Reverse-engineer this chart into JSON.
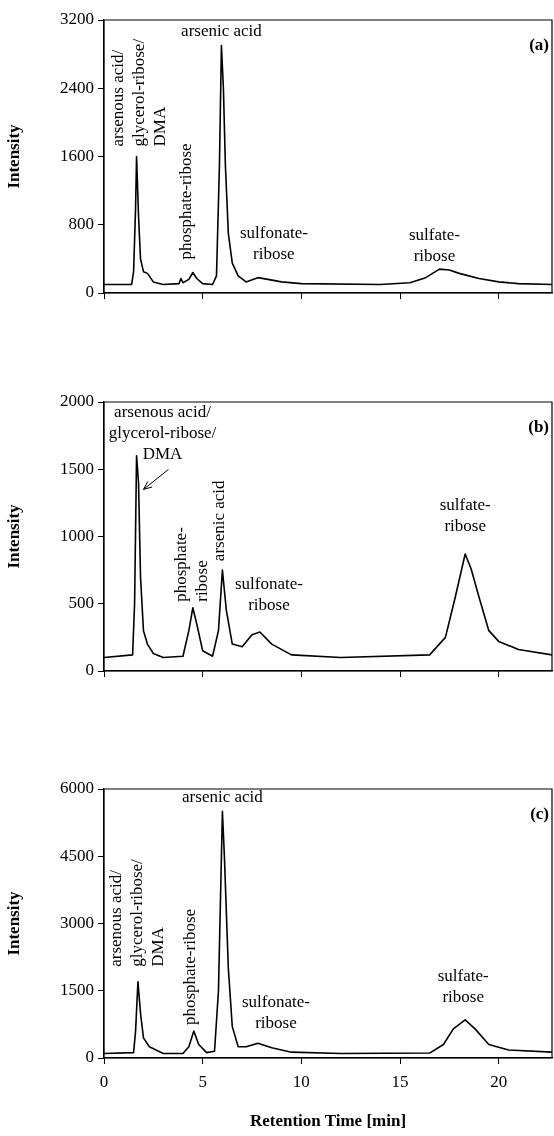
{
  "chart_data": [
    {
      "type": "line",
      "title": "(a)",
      "ylabel": "Intensity",
      "xlim": [
        0,
        22.7
      ],
      "xticks": [
        0,
        5,
        10,
        15,
        20
      ],
      "ylim": [
        0,
        3200
      ],
      "yticks": [
        0,
        800,
        1600,
        2400,
        3200
      ],
      "tick_labels": "y",
      "series": [
        {
          "color": "#000000",
          "x": [
            0,
            1.4,
            1.5,
            1.6,
            1.65,
            1.75,
            1.85,
            2.0,
            2.2,
            2.5,
            3.0,
            3.8,
            3.9,
            4.0,
            4.3,
            4.5,
            4.7,
            5.0,
            5.5,
            5.7,
            5.85,
            5.95,
            6.05,
            6.15,
            6.3,
            6.5,
            6.8,
            7.2,
            7.8,
            8.3,
            9,
            10,
            14,
            15.5,
            16.3,
            17,
            17.5,
            18,
            19,
            20,
            21,
            22.7
          ],
          "values": [
            100,
            100,
            250,
            1000,
            1600,
            900,
            400,
            250,
            230,
            130,
            100,
            110,
            170,
            120,
            160,
            240,
            170,
            110,
            100,
            200,
            1500,
            2900,
            2400,
            1500,
            700,
            350,
            200,
            130,
            180,
            160,
            130,
            110,
            100,
            120,
            180,
            280,
            270,
            230,
            170,
            130,
            110,
            100
          ]
        }
      ],
      "annotations": [
        {
          "text": "arsenous acid/\nglycerol-ribose/\nDMA",
          "x": 1.65,
          "y": 1600
        },
        {
          "text": "phosphate-ribose",
          "x": 4.5,
          "y": 240
        },
        {
          "text": "arsenic acid",
          "x": 5.95,
          "y": 2900
        },
        {
          "text": "sulfonate-\nribose",
          "x": 8,
          "y": 180
        },
        {
          "text": "sulfate-\nribose",
          "x": 17.2,
          "y": 280
        }
      ]
    },
    {
      "type": "line",
      "title": "(b)",
      "ylabel": "Intensity",
      "xlim": [
        0,
        22.7
      ],
      "xticks": [
        0,
        5,
        10,
        15,
        20
      ],
      "ylim": [
        0,
        2000
      ],
      "yticks": [
        0,
        500,
        1000,
        1500,
        2000
      ],
      "tick_labels": "y",
      "series": [
        {
          "color": "#000000",
          "x": [
            0,
            1.45,
            1.55,
            1.65,
            1.75,
            1.85,
            2.0,
            2.2,
            2.5,
            3,
            4,
            4.3,
            4.5,
            4.7,
            5,
            5.5,
            5.8,
            6.0,
            6.2,
            6.5,
            7,
            7.5,
            7.9,
            8.5,
            9.5,
            12,
            16.5,
            17.3,
            17.8,
            18.3,
            18.6,
            19,
            19.5,
            20,
            21,
            22.7
          ],
          "values": [
            100,
            120,
            500,
            1600,
            1400,
            700,
            300,
            200,
            130,
            100,
            110,
            300,
            470,
            350,
            150,
            110,
            300,
            750,
            450,
            200,
            180,
            270,
            290,
            200,
            120,
            100,
            120,
            250,
            550,
            870,
            760,
            550,
            300,
            220,
            160,
            120
          ]
        }
      ],
      "annotations": [
        {
          "text": "arsenous acid/\nglycerol-ribose/\nDMA",
          "x": 2.0,
          "y": 1350
        },
        {
          "text": "phosphate-\nribose",
          "x": 4.5,
          "y": 470
        },
        {
          "text": "arsenic acid",
          "x": 6.0,
          "y": 750
        },
        {
          "text": "sulfonate-\nribose",
          "x": 7.9,
          "y": 290
        },
        {
          "text": "sulfate-\nribose",
          "x": 18.3,
          "y": 870
        }
      ]
    },
    {
      "type": "line",
      "title": "(c)",
      "xlabel": "Retention Time [min]",
      "ylabel": "Intensity",
      "xlim": [
        0,
        22.7
      ],
      "xticks": [
        0,
        5,
        10,
        15,
        20
      ],
      "ylim": [
        0,
        6000
      ],
      "yticks": [
        0,
        1500,
        3000,
        4500,
        6000
      ],
      "series": [
        {
          "color": "#000000",
          "x": [
            0,
            1.5,
            1.6,
            1.72,
            1.85,
            2.0,
            2.3,
            3,
            4,
            4.3,
            4.55,
            4.8,
            5.2,
            5.6,
            5.8,
            6.0,
            6.1,
            6.3,
            6.5,
            6.8,
            7.2,
            7.8,
            8.5,
            9.5,
            12,
            16.5,
            17.2,
            17.7,
            18.3,
            18.8,
            19.5,
            20.5,
            22.7
          ],
          "values": [
            100,
            120,
            600,
            1700,
            1000,
            450,
            250,
            100,
            100,
            250,
            600,
            300,
            120,
            150,
            1500,
            5500,
            4500,
            2000,
            700,
            250,
            250,
            330,
            230,
            130,
            100,
            110,
            300,
            650,
            850,
            650,
            300,
            180,
            130
          ]
        }
      ],
      "annotations": [
        {
          "text": "arsenous acid/\nglycerol-ribose/\nDMA",
          "x": 1.72,
          "y": 1700
        },
        {
          "text": "phosphate-ribose",
          "x": 4.55,
          "y": 600
        },
        {
          "text": "arsenic acid",
          "x": 6.0,
          "y": 5500
        },
        {
          "text": "sulfonate-\nribose",
          "x": 7.8,
          "y": 330
        },
        {
          "text": "sulfate-\nribose",
          "x": 18.3,
          "y": 850
        }
      ]
    }
  ]
}
